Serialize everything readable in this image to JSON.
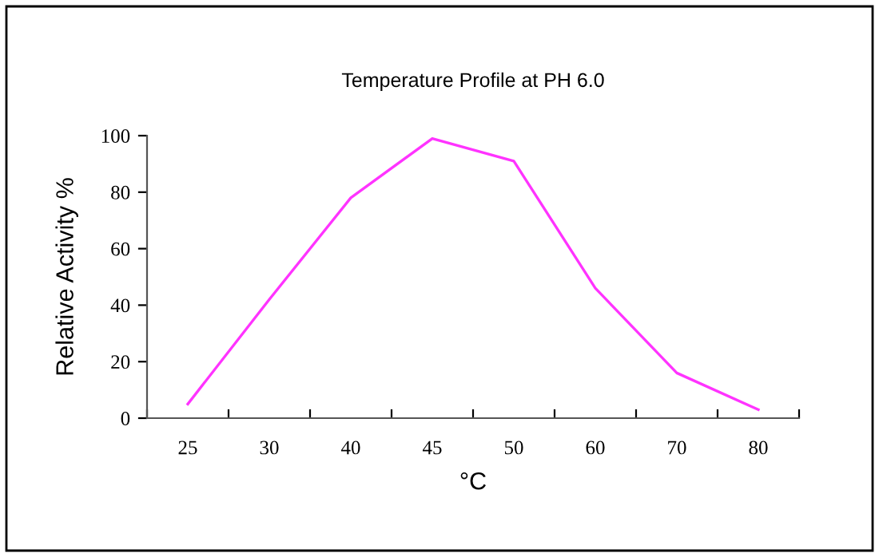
{
  "chart_data": {
    "type": "line",
    "title": "Temperature Profile at PH 6.0",
    "xlabel": "°C",
    "ylabel": "Relative Activity %",
    "categories": [
      "25",
      "30",
      "40",
      "45",
      "50",
      "60",
      "70",
      "80"
    ],
    "series": [
      {
        "color": "#ff33ff",
        "values": [
          5,
          42,
          78,
          99,
          91,
          46,
          16,
          3
        ]
      }
    ],
    "ylim": [
      0,
      100
    ],
    "yticks": [
      0,
      20,
      40,
      60,
      80,
      100
    ],
    "grid": false,
    "legend": false,
    "marker": "none",
    "line_style": "solid"
  }
}
